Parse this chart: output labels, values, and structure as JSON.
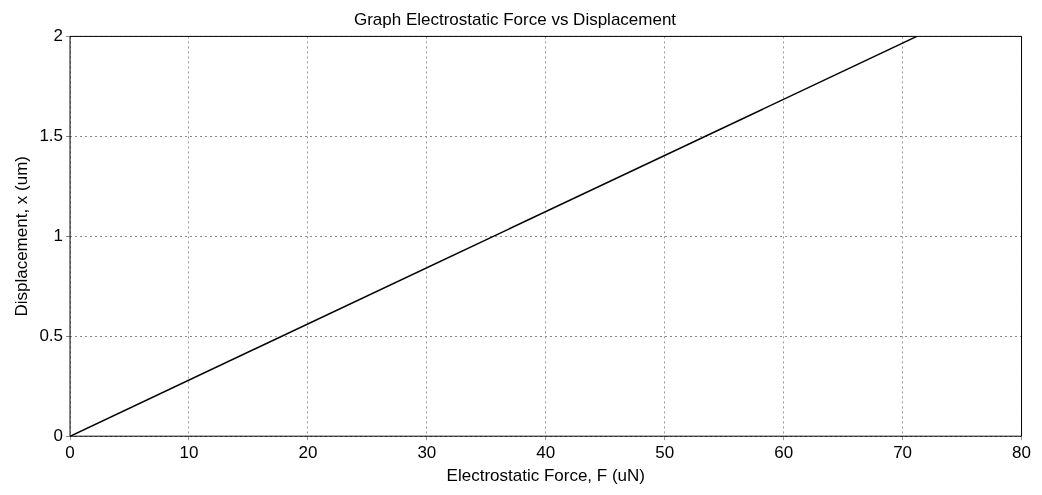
{
  "chart_data": {
    "type": "line",
    "title": "Graph Electrostatic Force vs Displacement",
    "xlabel": "Electrostatic Force, F (uN)",
    "ylabel": "Displacement, x (um)",
    "x": [
      0,
      71.2
    ],
    "values": [
      0,
      2
    ],
    "color": "#000000",
    "xlim": [
      0,
      80
    ],
    "xticks": [
      0,
      10,
      20,
      30,
      40,
      50,
      60,
      70,
      80
    ],
    "ylim": [
      0,
      2
    ],
    "yticks": [
      0,
      0.5,
      1,
      1.5,
      2
    ],
    "grid": true,
    "marker": "none",
    "line_style": "solid"
  }
}
